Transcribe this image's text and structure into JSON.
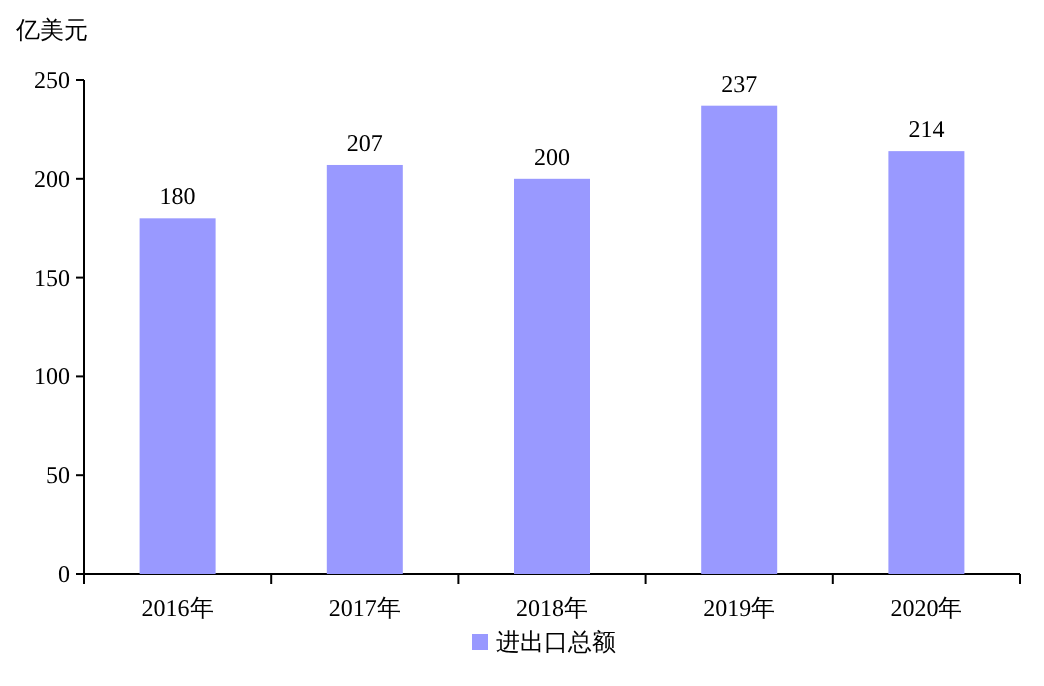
{
  "chart_data": {
    "type": "bar",
    "ylabel": "亿美元",
    "categories": [
      "2016年",
      "2017年",
      "2018年",
      "2019年",
      "2020年"
    ],
    "series": [
      {
        "name": "进出口总额",
        "color": "#9999ff",
        "values": [
          180,
          207,
          200,
          237,
          214
        ]
      }
    ],
    "ylim": [
      0,
      250
    ],
    "yticks": [
      0,
      50,
      100,
      150,
      200,
      250
    ],
    "data_labels": true,
    "legend": "bottom",
    "grid": false
  }
}
